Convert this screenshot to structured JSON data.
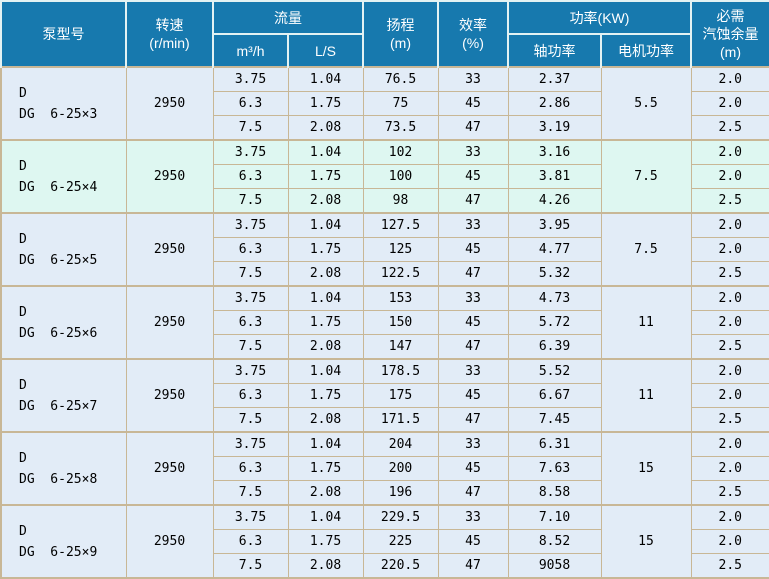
{
  "colors": {
    "header_bg": "#1779ae",
    "header_text": "#ffffff",
    "header_border": "#e3f2f3",
    "grid_border": "#c8b796",
    "row_bg_default": "#e2ecf7",
    "row_bg_alt": "#def7f1",
    "text": "#000000"
  },
  "header": {
    "pump_model": "泵型号",
    "speed": [
      "转速",
      "(r/min)"
    ],
    "flow": "流量",
    "flow_units": [
      "m³/h",
      "L/S"
    ],
    "head": [
      "扬程",
      "(m)"
    ],
    "efficiency": [
      "效率",
      "(%)"
    ],
    "power": "功率(KW)",
    "shaft_power": "轴功率",
    "motor_power": "电机功率",
    "npsh": [
      "必需",
      "汽蚀余量",
      "(m)"
    ]
  },
  "chart_data": {
    "type": "table",
    "columns": [
      "泵型号",
      "转速(r/min)",
      "流量 m³/h",
      "流量 L/S",
      "扬程(m)",
      "效率(%)",
      "轴功率(KW)",
      "电机功率(KW)",
      "必需汽蚀余量(m)"
    ],
    "groups": [
      {
        "model": [
          "D",
          "DG  6-25×3"
        ],
        "speed": "2950",
        "motor_power": "5.5",
        "highlight": false,
        "rows": [
          {
            "flow_m3h": "3.75",
            "flow_ls": "1.04",
            "head": "76.5",
            "eff": "33",
            "shaft": "2.37",
            "npsh": "2.0"
          },
          {
            "flow_m3h": "6.3",
            "flow_ls": "1.75",
            "head": "75",
            "eff": "45",
            "shaft": "2.86",
            "npsh": "2.0"
          },
          {
            "flow_m3h": "7.5",
            "flow_ls": "2.08",
            "head": "73.5",
            "eff": "47",
            "shaft": "3.19",
            "npsh": "2.5"
          }
        ]
      },
      {
        "model": [
          "D",
          "DG  6-25×4"
        ],
        "speed": "2950",
        "motor_power": "7.5",
        "highlight": true,
        "rows": [
          {
            "flow_m3h": "3.75",
            "flow_ls": "1.04",
            "head": "102",
            "eff": "33",
            "shaft": "3.16",
            "npsh": "2.0"
          },
          {
            "flow_m3h": "6.3",
            "flow_ls": "1.75",
            "head": "100",
            "eff": "45",
            "shaft": "3.81",
            "npsh": "2.0"
          },
          {
            "flow_m3h": "7.5",
            "flow_ls": "2.08",
            "head": "98",
            "eff": "47",
            "shaft": "4.26",
            "npsh": "2.5"
          }
        ]
      },
      {
        "model": [
          "D",
          "DG  6-25×5"
        ],
        "speed": "2950",
        "motor_power": "7.5",
        "highlight": false,
        "rows": [
          {
            "flow_m3h": "3.75",
            "flow_ls": "1.04",
            "head": "127.5",
            "eff": "33",
            "shaft": "3.95",
            "npsh": "2.0"
          },
          {
            "flow_m3h": "6.3",
            "flow_ls": "1.75",
            "head": "125",
            "eff": "45",
            "shaft": "4.77",
            "npsh": "2.0"
          },
          {
            "flow_m3h": "7.5",
            "flow_ls": "2.08",
            "head": "122.5",
            "eff": "47",
            "shaft": "5.32",
            "npsh": "2.5"
          }
        ]
      },
      {
        "model": [
          "D",
          "DG  6-25×6"
        ],
        "speed": "2950",
        "motor_power": "11",
        "highlight": false,
        "rows": [
          {
            "flow_m3h": "3.75",
            "flow_ls": "1.04",
            "head": "153",
            "eff": "33",
            "shaft": "4.73",
            "npsh": "2.0"
          },
          {
            "flow_m3h": "6.3",
            "flow_ls": "1.75",
            "head": "150",
            "eff": "45",
            "shaft": "5.72",
            "npsh": "2.0"
          },
          {
            "flow_m3h": "7.5",
            "flow_ls": "2.08",
            "head": "147",
            "eff": "47",
            "shaft": "6.39",
            "npsh": "2.5"
          }
        ]
      },
      {
        "model": [
          "D",
          "DG  6-25×7"
        ],
        "speed": "2950",
        "motor_power": "11",
        "highlight": false,
        "rows": [
          {
            "flow_m3h": "3.75",
            "flow_ls": "1.04",
            "head": "178.5",
            "eff": "33",
            "shaft": "5.52",
            "npsh": "2.0"
          },
          {
            "flow_m3h": "6.3",
            "flow_ls": "1.75",
            "head": "175",
            "eff": "45",
            "shaft": "6.67",
            "npsh": "2.0"
          },
          {
            "flow_m3h": "7.5",
            "flow_ls": "2.08",
            "head": "171.5",
            "eff": "47",
            "shaft": "7.45",
            "npsh": "2.5"
          }
        ]
      },
      {
        "model": [
          "D",
          "DG  6-25×8"
        ],
        "speed": "2950",
        "motor_power": "15",
        "highlight": false,
        "rows": [
          {
            "flow_m3h": "3.75",
            "flow_ls": "1.04",
            "head": "204",
            "eff": "33",
            "shaft": "6.31",
            "npsh": "2.0"
          },
          {
            "flow_m3h": "6.3",
            "flow_ls": "1.75",
            "head": "200",
            "eff": "45",
            "shaft": "7.63",
            "npsh": "2.0"
          },
          {
            "flow_m3h": "7.5",
            "flow_ls": "2.08",
            "head": "196",
            "eff": "47",
            "shaft": "8.58",
            "npsh": "2.5"
          }
        ]
      },
      {
        "model": [
          "D",
          "DG  6-25×9"
        ],
        "speed": "2950",
        "motor_power": "15",
        "highlight": false,
        "rows": [
          {
            "flow_m3h": "3.75",
            "flow_ls": "1.04",
            "head": "229.5",
            "eff": "33",
            "shaft": "7.10",
            "npsh": "2.0"
          },
          {
            "flow_m3h": "6.3",
            "flow_ls": "1.75",
            "head": "225",
            "eff": "45",
            "shaft": "8.52",
            "npsh": "2.0"
          },
          {
            "flow_m3h": "7.5",
            "flow_ls": "2.08",
            "head": "220.5",
            "eff": "47",
            "shaft": "9058",
            "npsh": "2.5"
          }
        ]
      }
    ]
  }
}
